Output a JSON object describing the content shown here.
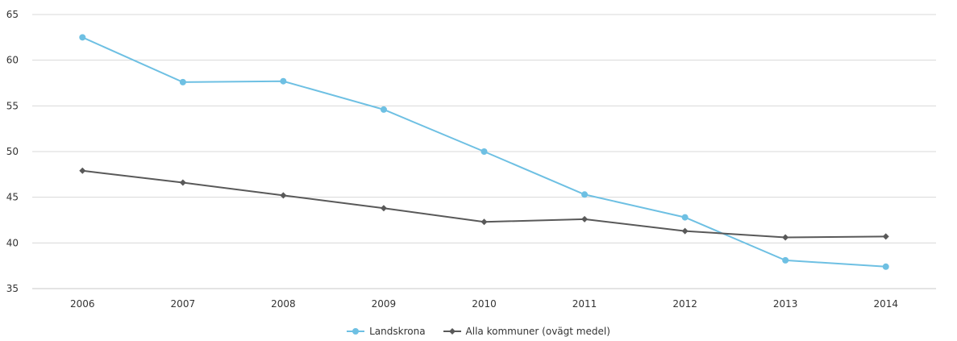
{
  "chart_data": {
    "type": "line",
    "categories": [
      "2006",
      "2007",
      "2008",
      "2009",
      "2010",
      "2011",
      "2012",
      "2013",
      "2014"
    ],
    "series": [
      {
        "name": "Landskrona",
        "values": [
          62.5,
          57.6,
          57.7,
          54.6,
          50.0,
          45.3,
          42.8,
          38.1,
          37.4
        ],
        "color": "#6ec0e3",
        "marker": "circle"
      },
      {
        "name": "Alla kommuner (ovägt medel)",
        "values": [
          47.9,
          46.6,
          45.2,
          43.8,
          42.3,
          42.6,
          41.3,
          40.6,
          40.7
        ],
        "color": "#595959",
        "marker": "diamond"
      }
    ],
    "yticks": [
      "35",
      "40",
      "45",
      "50",
      "55",
      "60",
      "65"
    ],
    "ylim": [
      35,
      65
    ],
    "grid": true,
    "legend_position": "bottom-center"
  }
}
